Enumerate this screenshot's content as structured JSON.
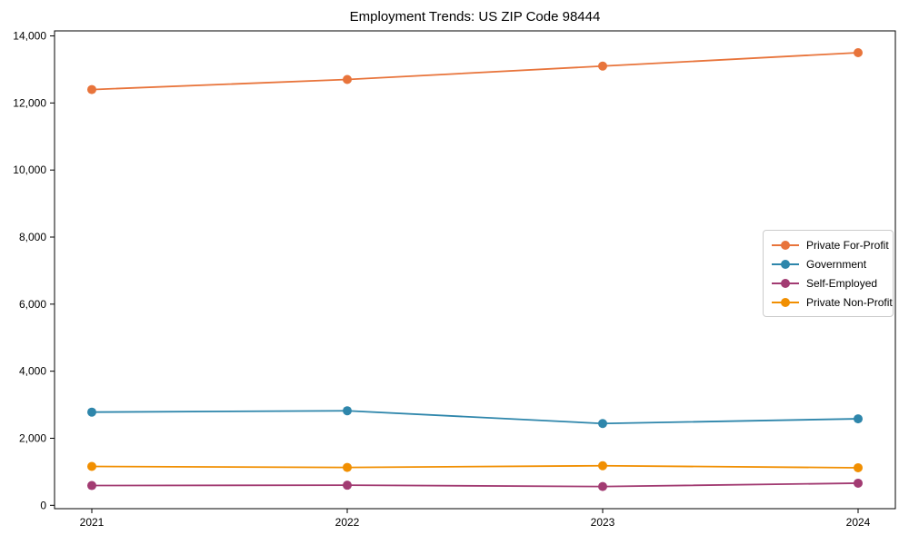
{
  "title": "Employment Trends: US ZIP Code 98444",
  "chart_data": {
    "type": "line",
    "title": "Employment Trends: US ZIP Code 98444",
    "xlabel": "",
    "ylabel": "",
    "x": [
      "2021",
      "2022",
      "2023",
      "2024"
    ],
    "series": [
      {
        "name": "Private For-Profit",
        "color": "#E8743B",
        "values": [
          12400,
          12700,
          13100,
          13500
        ]
      },
      {
        "name": "Government",
        "color": "#2E86AB",
        "values": [
          2780,
          2820,
          2440,
          2580
        ]
      },
      {
        "name": "Self-Employed",
        "color": "#A23B72",
        "values": [
          590,
          600,
          560,
          660
        ]
      },
      {
        "name": "Private Non-Profit",
        "color": "#F18F01",
        "values": [
          1160,
          1130,
          1180,
          1120
        ]
      }
    ],
    "yticks": [
      0,
      2000,
      4000,
      6000,
      8000,
      10000,
      12000,
      14000
    ],
    "ylim": [
      -100,
      14150
    ],
    "grid": false,
    "legend_position": "center right",
    "marker": "circle"
  }
}
